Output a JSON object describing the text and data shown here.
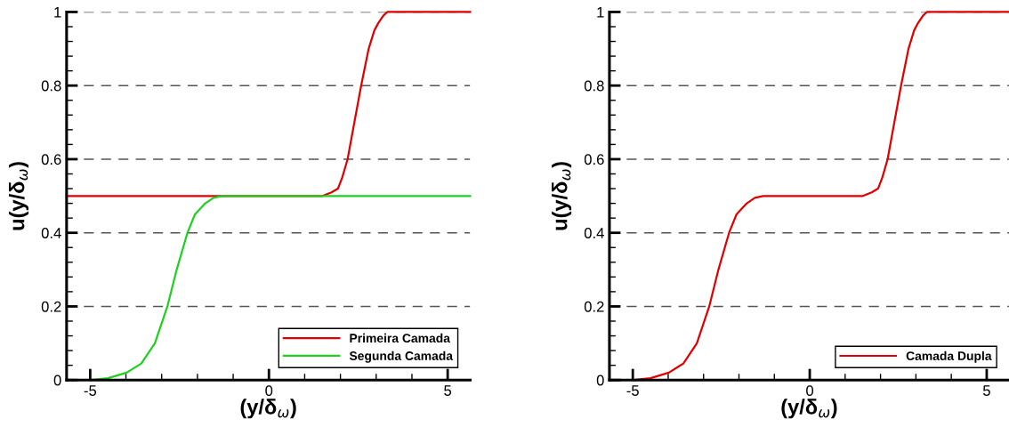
{
  "chart_data": [
    {
      "type": "line",
      "xlabel": "(y/δ$_{ω}$)",
      "ylabel": "u(y/δ$_{ω}$)",
      "xlim": [
        -5.66,
        5.63
      ],
      "ylim": [
        0,
        1
      ],
      "xticks": [
        -5,
        0,
        5
      ],
      "yticks": [
        0,
        0.2,
        0.4,
        0.6,
        0.8,
        1
      ],
      "grid": "y",
      "legend": "bottom right",
      "line_style": "solid",
      "marker": "none",
      "series": [
        {
          "name": "Primeira Camada",
          "color": "#e00000",
          "x": [
            -5.66,
            1.5,
            1.75,
            1.93,
            2.05,
            2.2,
            2.39,
            2.58,
            2.79,
            2.95,
            3.06,
            3.2,
            3.31,
            5.63
          ],
          "values": [
            0.5,
            0.5,
            0.51,
            0.52,
            0.55,
            0.6,
            0.7,
            0.8,
            0.9,
            0.95,
            0.97,
            0.99,
            1,
            1
          ]
        },
        {
          "name": "Segunda Camada",
          "color": "#20d020",
          "x": [
            -4.98,
            -4.5,
            -3.98,
            -3.57,
            -3.19,
            -2.84,
            -2.58,
            -2.28,
            -2.07,
            -1.78,
            -1.55,
            -1.32,
            5.63
          ],
          "values": [
            0,
            0.005,
            0.02,
            0.045,
            0.1,
            0.2,
            0.3,
            0.4,
            0.45,
            0.48,
            0.495,
            0.5,
            0.5
          ]
        }
      ]
    },
    {
      "type": "line",
      "xlabel": "(y/δ$_{ω}$)",
      "ylabel": "u(y/δ$_{ω}$)",
      "xlim": [
        -5.66,
        5.63
      ],
      "ylim": [
        0,
        1
      ],
      "xticks": [
        -5,
        0,
        5
      ],
      "yticks": [
        0,
        0.2,
        0.4,
        0.6,
        0.8,
        1
      ],
      "grid": "y",
      "legend": "bottom right",
      "line_style": "solid",
      "marker": "none",
      "series": [
        {
          "name": "Camada Dupla",
          "color": "#e00000",
          "x": [
            -4.98,
            -4.5,
            -3.98,
            -3.57,
            -3.19,
            -2.84,
            -2.58,
            -2.28,
            -2.07,
            -1.78,
            -1.55,
            -1.32,
            1.5,
            1.75,
            1.93,
            2.05,
            2.2,
            2.39,
            2.58,
            2.79,
            2.95,
            3.06,
            3.2,
            3.31,
            5.63
          ],
          "values": [
            0,
            0.005,
            0.02,
            0.045,
            0.1,
            0.2,
            0.3,
            0.4,
            0.45,
            0.48,
            0.495,
            0.5,
            0.5,
            0.51,
            0.52,
            0.55,
            0.6,
            0.7,
            0.8,
            0.9,
            0.95,
            0.97,
            0.99,
            1,
            1
          ]
        }
      ]
    }
  ]
}
